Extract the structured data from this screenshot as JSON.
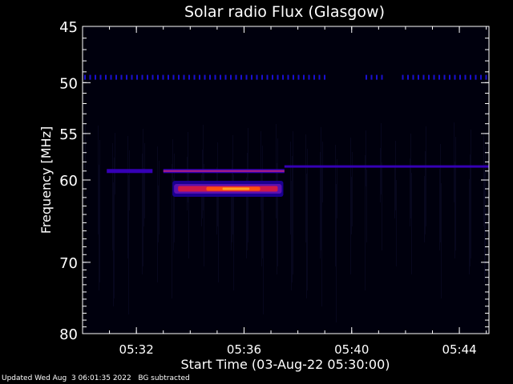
{
  "chart_data": {
    "type": "heatmap",
    "title": "Solar radio Flux (Glasgow)",
    "xlabel": "Start Time (03-Aug-22 05:30:00)",
    "ylabel": "Frequency [MHz]",
    "x_unit": "minutes after 05:30:00",
    "xlim": [
      0,
      15.1
    ],
    "ylim": [
      45,
      80
    ],
    "y_inverted": true,
    "y_scale": "log",
    "xticks": [
      {
        "value": 2,
        "label": "05:32"
      },
      {
        "value": 6,
        "label": "05:36"
      },
      {
        "value": 10,
        "label": "05:40"
      },
      {
        "value": 14,
        "label": "05:44"
      }
    ],
    "yticks": [
      {
        "value": 45,
        "label": "45"
      },
      {
        "value": 50,
        "label": "50"
      },
      {
        "value": 55,
        "label": "55"
      },
      {
        "value": 60,
        "label": "60"
      },
      {
        "value": 70,
        "label": "70"
      },
      {
        "value": 80,
        "label": "80"
      }
    ],
    "colormap": [
      "#000010",
      "#1a0066",
      "#3b00c8",
      "#7a10c0",
      "#d01850",
      "#ff6010",
      "#ffb020"
    ],
    "features": [
      {
        "name": "50 MHz interference line",
        "x_start": 0,
        "x_end": 15.1,
        "freq_mhz": 49.5,
        "intensity": 0.35,
        "dashed": true
      },
      {
        "name": "drifting band",
        "x_start": 0.9,
        "x_end": 2.6,
        "freq_mhz": 59.0,
        "intensity": 0.32
      },
      {
        "name": "band",
        "x_start": 3.0,
        "x_end": 7.5,
        "freq_mhz": 59.0,
        "intensity": 0.4
      },
      {
        "name": "faint continuation",
        "x_start": 7.5,
        "x_end": 15.1,
        "freq_mhz": 58.5,
        "intensity": 0.25
      },
      {
        "name": "radio burst",
        "x_start": 3.4,
        "x_end": 7.4,
        "freq_mhz": 61.0,
        "intensity": 0.95
      }
    ]
  },
  "footer": {
    "updated": "Updated Wed Aug  3 06:01:35 2022",
    "note": "BG subtracted"
  }
}
